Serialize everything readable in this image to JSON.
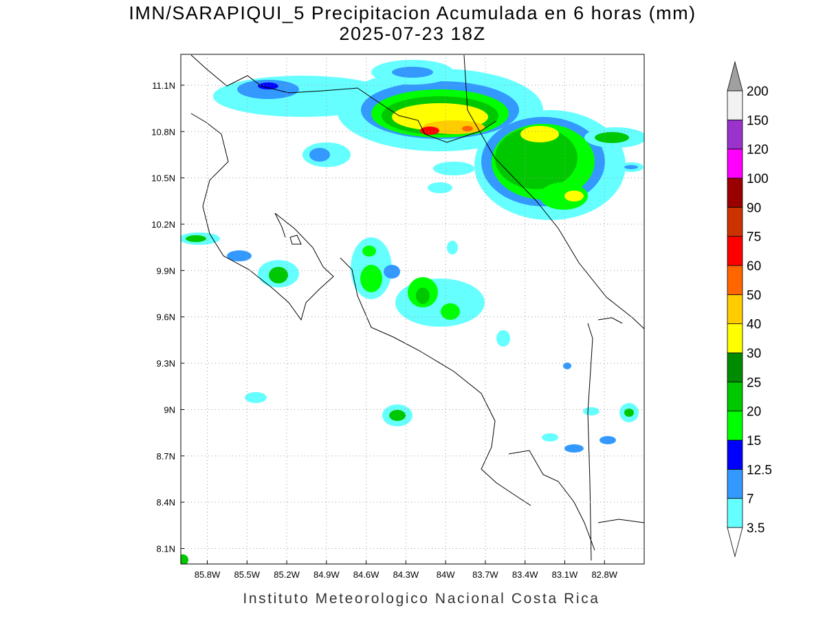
{
  "title": "IMN/SARAPIQUI_5 Precipitacion Acumulada en 6 horas (mm)",
  "subtitle": "2025-07-23 18Z",
  "map": {
    "xlim": [
      -86.0,
      -82.5
    ],
    "ylim": [
      8.0,
      11.3
    ],
    "xticks": [
      {
        "value": -85.8,
        "label": "85.8W"
      },
      {
        "value": -85.5,
        "label": "85.5W"
      },
      {
        "value": -85.2,
        "label": "85.2W"
      },
      {
        "value": -84.9,
        "label": "84.9W"
      },
      {
        "value": -84.6,
        "label": "84.6W"
      },
      {
        "value": -84.3,
        "label": "84.3W"
      },
      {
        "value": -84.0,
        "label": "84W"
      },
      {
        "value": -83.7,
        "label": "83.7W"
      },
      {
        "value": -83.4,
        "label": "83.4W"
      },
      {
        "value": -83.1,
        "label": "83.1W"
      },
      {
        "value": -82.8,
        "label": "82.8W"
      }
    ],
    "yticks": [
      {
        "value": 11.1,
        "label": "11.1N"
      },
      {
        "value": 10.8,
        "label": "10.8N"
      },
      {
        "value": 10.5,
        "label": "10.5N"
      },
      {
        "value": 10.2,
        "label": "10.2N"
      },
      {
        "value": 9.9,
        "label": "9.9N"
      },
      {
        "value": 9.6,
        "label": "9.6N"
      },
      {
        "value": 9.3,
        "label": "9.3N"
      },
      {
        "value": 9.0,
        "label": "9N"
      },
      {
        "value": 8.7,
        "label": "8.7N"
      },
      {
        "value": 8.4,
        "label": "8.4N"
      },
      {
        "value": 8.1,
        "label": "8.1N"
      }
    ],
    "grid": true
  },
  "colorbar": {
    "levels": [
      3.5,
      7,
      12.5,
      15,
      20,
      25,
      30,
      40,
      50,
      60,
      75,
      90,
      100,
      120,
      150,
      200
    ],
    "colors": [
      "#66ffff",
      "#3399ff",
      "#0000ff",
      "#00ff00",
      "#00c800",
      "#008c00",
      "#ffff00",
      "#ffcc00",
      "#ff6600",
      "#ff0000",
      "#cc3300",
      "#990000",
      "#ff00ff",
      "#9933cc",
      "#f2f2f2"
    ],
    "under_color": "#ffffff",
    "over_color": "#a0a0a0"
  },
  "footer": "Instituto Meteorologico Nacional Costa Rica"
}
